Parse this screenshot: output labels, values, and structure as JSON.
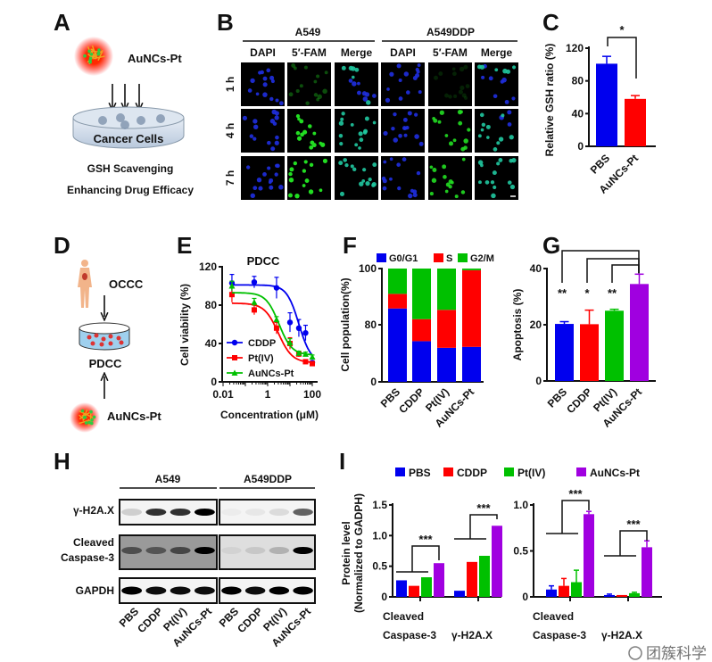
{
  "panels": {
    "A": {
      "label": "A",
      "agent": "AuNCs-Pt",
      "dish": "Cancer Cells",
      "line1": "GSH Scavenging",
      "line2": "Enhancing Drug Efficacy"
    },
    "B": {
      "label": "B",
      "groups": [
        "A549",
        "A549DDP"
      ],
      "channels": [
        "DAPI",
        "5′-FAM",
        "Merge",
        "DAPI",
        "5′-FAM",
        "Merge"
      ],
      "rows": [
        "1 h",
        "4 h",
        "7 h"
      ]
    },
    "C": {
      "label": "C"
    },
    "D": {
      "label": "D",
      "source": "OCCC",
      "model": "PDCC",
      "agent": "AuNCs-Pt"
    },
    "E": {
      "label": "E"
    },
    "F": {
      "label": "F"
    },
    "G": {
      "label": "G"
    },
    "H": {
      "label": "H",
      "groups": [
        "A549",
        "A549DDP"
      ],
      "rows": [
        "γ-H2A.X",
        "Cleaved",
        "Caspase-3",
        "GAPDH"
      ],
      "lanes": [
        "PBS",
        "CDDP",
        "Pt(IV)",
        "AuNCs-Pt",
        "PBS",
        "CDDP",
        "Pt(IV)",
        "AuNCs-Pt"
      ]
    },
    "I": {
      "label": "I",
      "legend": [
        "PBS",
        "CDDP",
        "Pt(IV)",
        "AuNCs-Pt"
      ],
      "ylabel1": "Protein level",
      "ylabel2": "(Normalized to GADPH)"
    }
  },
  "colors": {
    "PBS": "#0000ee",
    "CDDP": "#ff0000",
    "PtIV": "#00c000",
    "AuNCsPt": "#a000e0"
  },
  "watermark": "团簇科学",
  "chart_data": [
    {
      "id": "C",
      "type": "bar",
      "title": "",
      "ylabel": "Relative GSH  ratio (%)",
      "ylim": [
        0,
        120
      ],
      "yticks": [
        "0",
        "40",
        "80",
        "120"
      ],
      "categories": [
        "PBS",
        "AuNCs-Pt"
      ],
      "values": [
        101,
        58
      ],
      "errors": [
        9,
        4
      ],
      "significance": "*"
    },
    {
      "id": "E",
      "type": "line",
      "title": "PDCC",
      "xlabel": "Concentration (μM)",
      "ylabel": "Cell viability (%)",
      "xscale": "log",
      "xlim": [
        0.01,
        100
      ],
      "ylim": [
        0,
        120
      ],
      "xticks": [
        "0.01",
        "1",
        "100"
      ],
      "yticks": [
        "0",
        "40",
        "80",
        "120"
      ],
      "legend_position": "bottom-left",
      "x": [
        0.025,
        0.25,
        2.5,
        10,
        25,
        50,
        100
      ],
      "series": [
        {
          "name": "CDDP",
          "marker": "circle",
          "values": [
            103,
            104,
            98,
            62,
            56,
            51,
            20
          ],
          "errors": [
            9,
            6,
            11,
            10,
            9,
            8,
            2
          ],
          "fit": {
            "top": 101,
            "bottom": 20,
            "ic50": 25,
            "hill": 1.6
          }
        },
        {
          "name": "Pt(IV)",
          "marker": "square",
          "values": [
            91,
            75,
            56,
            40,
            29,
            21,
            19
          ],
          "errors": [
            8,
            5,
            6,
            6,
            3,
            2,
            2
          ],
          "fit": {
            "top": 82,
            "bottom": 20,
            "ic50": 3,
            "hill": 1.4
          }
        },
        {
          "name": "AuNCs-Pt",
          "marker": "triangle",
          "values": [
            100,
            83,
            65,
            41,
            30,
            29,
            26
          ],
          "errors": [
            5,
            4,
            3,
            4,
            2,
            2,
            2
          ],
          "fit": {
            "top": 93,
            "bottom": 28,
            "ic50": 3.2,
            "hill": 1.5
          }
        }
      ]
    },
    {
      "id": "F",
      "type": "bar",
      "stacked": true,
      "ylabel": "Cell population(%)",
      "yticks": [
        "0",
        "80",
        "100"
      ],
      "legend_position": "top",
      "categories": [
        "PBS",
        "CDDP",
        "Pt(IV)",
        "AuNCs-Pt"
      ],
      "series": [
        {
          "name": "G0/G1",
          "values": [
            85.8,
            57,
            47.7,
            49
          ]
        },
        {
          "name": "S",
          "values": [
            5.2,
            25,
            37.6,
            50.4
          ]
        },
        {
          "name": "G2/M",
          "values": [
            9,
            18,
            14.7,
            0.6
          ]
        }
      ]
    },
    {
      "id": "G",
      "type": "bar",
      "ylabel": "Apoptosis (%)",
      "ylim": [
        0,
        40
      ],
      "yticks": [
        "0",
        "20",
        "40"
      ],
      "categories": [
        "PBS",
        "CDDP",
        "Pt(IV)",
        "AuNCs-Pt"
      ],
      "values": [
        20.3,
        20.2,
        25,
        34.5
      ],
      "errors": [
        0.8,
        5,
        0.5,
        3.5
      ],
      "significance": [
        "**",
        "*",
        "**"
      ]
    },
    {
      "id": "I-left",
      "type": "bar",
      "ylim": [
        0,
        1.5
      ],
      "yticks": [
        "0",
        "0.5",
        "1.0",
        "1.5"
      ],
      "categories": [
        "Cleaved Caspase-3",
        "γ-H2A.X"
      ],
      "series": [
        {
          "name": "PBS",
          "values": [
            0.27,
            0.1
          ]
        },
        {
          "name": "CDDP",
          "values": [
            0.18,
            0.57
          ]
        },
        {
          "name": "Pt(IV)",
          "values": [
            0.32,
            0.67
          ]
        },
        {
          "name": "AuNCs-Pt",
          "values": [
            0.55,
            1.16
          ]
        }
      ],
      "significance": [
        "***",
        "***"
      ]
    },
    {
      "id": "I-right",
      "type": "bar",
      "ylim": [
        0,
        1.0
      ],
      "yticks": [
        "0",
        "0.5",
        "1.0"
      ],
      "categories": [
        "Cleaved Caspase-3",
        "γ-H2A.X"
      ],
      "series": [
        {
          "name": "PBS",
          "values": [
            0.08,
            0.02
          ],
          "errors": [
            0.04,
            0.01
          ]
        },
        {
          "name": "CDDP",
          "values": [
            0.12,
            0.02
          ],
          "errors": [
            0.08,
            0
          ]
        },
        {
          "name": "Pt(IV)",
          "values": [
            0.16,
            0.04
          ],
          "errors": [
            0.13,
            0.01
          ]
        },
        {
          "name": "AuNCs-Pt",
          "values": [
            0.9,
            0.54
          ],
          "errors": [
            0.03,
            0.07
          ]
        }
      ],
      "significance": [
        "***",
        "***"
      ]
    }
  ]
}
